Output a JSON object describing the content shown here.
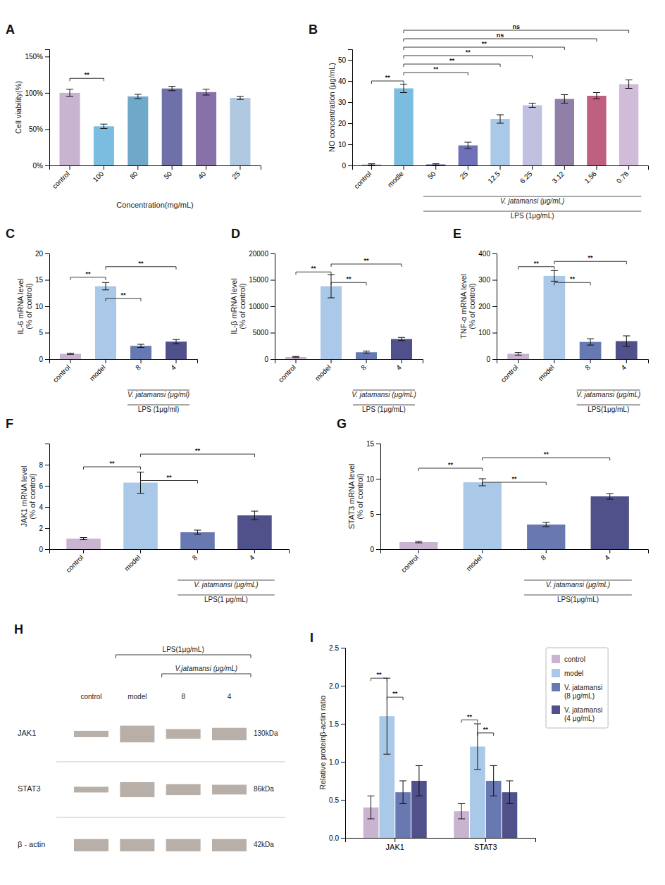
{
  "chart_data": [
    {
      "type": "bar",
      "title": "A",
      "categories": [
        "control",
        "100",
        "80",
        "50",
        "40",
        "25"
      ],
      "values": [
        100,
        54,
        95,
        106,
        101,
        93
      ],
      "errors": [
        5,
        3,
        3,
        3,
        4,
        2
      ],
      "colors": [
        "#c8b4d0",
        "#7abde0",
        "#6fa8c8",
        "#7070a8",
        "#8870a8",
        "#b0c8e0"
      ],
      "xlabel": "Concentration(mg/mL)",
      "ylabel": "Cell viability(%)",
      "ylim": [
        0,
        160
      ],
      "yticks": [
        {
          "value": 0,
          "label": "0%"
        },
        {
          "value": 50,
          "label": "50%"
        },
        {
          "value": 100,
          "label": "100%"
        },
        {
          "value": 150,
          "label": "150%"
        }
      ],
      "annotations": [
        {
          "from": "control",
          "to": "100",
          "y": 120,
          "label": "**"
        }
      ]
    },
    {
      "type": "bar",
      "title": "B",
      "categories": [
        "control",
        "modle",
        "50",
        "25",
        "12.5",
        "6.25",
        "3.12",
        "1.56",
        "0.78"
      ],
      "values": [
        0.5,
        36.5,
        0.5,
        9.5,
        22,
        28.5,
        31.5,
        33,
        38.5
      ],
      "errors": [
        0.3,
        2,
        0.3,
        1.5,
        2,
        1,
        2,
        1.5,
        2
      ],
      "colors": [
        "#c8b4d0",
        "#7abde0",
        "#6060a0",
        "#7070b8",
        "#aac8e8",
        "#c0c0e0",
        "#9080a8",
        "#c06080",
        "#d0bcd8"
      ],
      "ylabel": "NO concentration (μg/mL)",
      "ylim": [
        0,
        55
      ],
      "yticks": [
        0,
        10,
        20,
        30,
        40,
        50
      ],
      "annotations": [
        {
          "from": "control",
          "to": "modle",
          "y": 40,
          "label": "**"
        },
        {
          "from": "modle",
          "to": "25",
          "y": 44,
          "label": "**"
        },
        {
          "from": "modle",
          "to": "12.5",
          "y": 48,
          "label": "**"
        },
        {
          "from": "modle",
          "to": "6.25",
          "y": 52,
          "label": "**"
        },
        {
          "from": "modle",
          "to": "3.12",
          "y": 56,
          "label": "**"
        },
        {
          "from": "modle",
          "to": "1.56",
          "y": 60,
          "label": "ns"
        },
        {
          "from": "modle",
          "to": "0.78",
          "y": 64,
          "label": "ns"
        }
      ],
      "axis_annotations": [
        {
          "text": "V. jatamansi (μg/mL)",
          "from": "50",
          "to": "0.78"
        },
        {
          "text": "LPS (1μg/mL)",
          "from": "50",
          "to": "0.78"
        }
      ]
    },
    {
      "type": "bar",
      "title": "C",
      "categories": [
        "control",
        "model",
        "8",
        "4"
      ],
      "values": [
        1.0,
        13.8,
        2.5,
        3.3
      ],
      "errors": [
        0.1,
        0.7,
        0.3,
        0.4
      ],
      "colors": [
        "#c8b4d0",
        "#aac8e8",
        "#6878b0",
        "#50508a"
      ],
      "ylabel": "IL-6 mRNA level\n(% of control)",
      "ylim": [
        0,
        20
      ],
      "yticks": [
        0,
        5,
        10,
        15,
        20
      ],
      "annotations": [
        {
          "from": "control",
          "to": "model",
          "y": 15.5,
          "label": "**"
        },
        {
          "from": "model",
          "to": "8",
          "y": 11.5,
          "label": "**"
        },
        {
          "from": "model",
          "to": "4",
          "y": 17.5,
          "label": "**"
        }
      ],
      "axis_annotations": [
        {
          "text": "V. jatamansi (μg/ml)",
          "from": "8",
          "to": "4"
        },
        {
          "text": "LPS (1μg/ml)",
          "from": "8",
          "to": "4"
        }
      ]
    },
    {
      "type": "bar",
      "title": "D",
      "categories": [
        "control",
        "model",
        "8",
        "4"
      ],
      "values": [
        400,
        13800,
        1300,
        3800
      ],
      "errors": [
        100,
        2200,
        200,
        300
      ],
      "colors": [
        "#c8b4d0",
        "#aac8e8",
        "#6878b0",
        "#50508a"
      ],
      "ylabel": "IL-β mRNA level\n(% of control)",
      "ylim": [
        0,
        20000
      ],
      "yticks": [
        0,
        5000,
        10000,
        15000,
        20000
      ],
      "annotations": [
        {
          "from": "control",
          "to": "model",
          "y": 16500,
          "label": "**"
        },
        {
          "from": "model",
          "to": "8",
          "y": 14500,
          "label": "**"
        },
        {
          "from": "model",
          "to": "4",
          "y": 18000,
          "label": "**"
        }
      ],
      "axis_annotations": [
        {
          "text": "V. jatamansi (μg/mL)",
          "from": "8",
          "to": "4"
        },
        {
          "text": "LPS (1μg/mL)",
          "from": "8",
          "to": "4"
        }
      ]
    },
    {
      "type": "bar",
      "title": "E",
      "categories": [
        "control",
        "model",
        "8",
        "4"
      ],
      "values": [
        20,
        315,
        65,
        68
      ],
      "errors": [
        5,
        20,
        12,
        20
      ],
      "colors": [
        "#c8b4d0",
        "#aac8e8",
        "#6878b0",
        "#50508a"
      ],
      "ylabel": "TNF-α mRNA level\n(% of control)",
      "ylim": [
        0,
        400
      ],
      "yticks": [
        0,
        100,
        200,
        300,
        400
      ],
      "annotations": [
        {
          "from": "control",
          "to": "model",
          "y": 350,
          "label": "**"
        },
        {
          "from": "model",
          "to": "8",
          "y": 290,
          "label": "**"
        },
        {
          "from": "model",
          "to": "4",
          "y": 370,
          "label": "**"
        }
      ],
      "axis_annotations": [
        {
          "text": "V. jatamansi (μg/mL)",
          "from": "8",
          "to": "4"
        },
        {
          "text": "LPS(1μg/mL)",
          "from": "8",
          "to": "4"
        }
      ]
    },
    {
      "type": "bar",
      "title": "F",
      "categories": [
        "control",
        "model",
        "8",
        "4"
      ],
      "values": [
        1.0,
        6.3,
        1.6,
        3.2
      ],
      "errors": [
        0.1,
        1.0,
        0.2,
        0.4
      ],
      "colors": [
        "#c8b4d0",
        "#aac8e8",
        "#6878b0",
        "#50508a"
      ],
      "ylabel": "JAK1 mRNA level\n(% of control)",
      "ylim": [
        0,
        10
      ],
      "yticks": [
        0,
        2,
        4,
        6,
        8
      ],
      "annotations": [
        {
          "from": "control",
          "to": "model",
          "y": 7.8,
          "label": "**"
        },
        {
          "from": "model",
          "to": "8",
          "y": 6.5,
          "label": "**"
        },
        {
          "from": "model",
          "to": "4",
          "y": 9.0,
          "label": "**"
        }
      ],
      "axis_annotations": [
        {
          "text": "V. jatamansi (μg/mL)",
          "from": "8",
          "to": "4"
        },
        {
          "text": "LPS(1 μg/mL)",
          "from": "8",
          "to": "4"
        }
      ]
    },
    {
      "type": "bar",
      "title": "G",
      "categories": [
        "control",
        "model",
        "8",
        "4"
      ],
      "values": [
        1.0,
        9.5,
        3.5,
        7.5
      ],
      "errors": [
        0.1,
        0.5,
        0.3,
        0.4
      ],
      "colors": [
        "#c8b4d0",
        "#aac8e8",
        "#6878b0",
        "#50508a"
      ],
      "ylabel": "STAT3 mRNA level\n(% of control)",
      "ylim": [
        0,
        15
      ],
      "yticks": [
        0,
        5,
        10,
        15
      ],
      "annotations": [
        {
          "from": "control",
          "to": "model",
          "y": 11.5,
          "label": "**"
        },
        {
          "from": "model",
          "to": "8",
          "y": 9.5,
          "label": "**"
        },
        {
          "from": "model",
          "to": "4",
          "y": 13.0,
          "label": "**"
        }
      ],
      "axis_annotations": [
        {
          "text": "V. jatamansi (μg/mL)",
          "from": "8",
          "to": "4"
        },
        {
          "text": "LPS(1μg/mL)",
          "from": "8",
          "to": "4"
        }
      ]
    },
    {
      "type": "blot",
      "title": "H",
      "lanes": [
        "control",
        "model",
        "8",
        "4"
      ],
      "headers": [
        {
          "label": "LPS(1μg/mL)",
          "from": "model",
          "to": "4"
        },
        {
          "label": "V.jatamansi (μg/mL)",
          "from": "8",
          "to": "4"
        }
      ],
      "bands": [
        {
          "label": "JAK1",
          "kda": "130kDa",
          "widths": [
            0.25,
            0.65,
            0.38,
            0.48
          ]
        },
        {
          "label": "STAT3",
          "kda": "86kDa",
          "widths": [
            0.22,
            0.58,
            0.42,
            0.38
          ]
        },
        {
          "label": "β - actin",
          "kda": "42kDa",
          "widths": [
            0.48,
            0.48,
            0.48,
            0.48
          ]
        }
      ],
      "color": "#b8b0a8"
    },
    {
      "type": "bar",
      "title": "I",
      "categories": [
        "JAK1",
        "STAT3"
      ],
      "series": [
        {
          "name": "control",
          "color": "#c8b4d0",
          "values": [
            0.4,
            0.35
          ],
          "errors": [
            0.15,
            0.1
          ]
        },
        {
          "name": "model",
          "color": "#aac8e8",
          "values": [
            1.6,
            1.2
          ],
          "errors": [
            0.5,
            0.3
          ]
        },
        {
          "name": "V. jatamansi\n(8 μg/mL)",
          "color": "#6878b0",
          "values": [
            0.6,
            0.75
          ],
          "errors": [
            0.15,
            0.2
          ]
        },
        {
          "name": "V. jatamansi\n(4 μg/mL)",
          "color": "#50508a",
          "values": [
            0.75,
            0.6
          ],
          "errors": [
            0.2,
            0.15
          ]
        }
      ],
      "ylabel": "Relative proteinβ-actin ratio",
      "ylim": [
        0,
        2.5
      ],
      "yticks": [
        {
          "value": 0,
          "label": "0.0"
        },
        0.5,
        {
          "value": 1,
          "label": "1.0"
        },
        1.5,
        {
          "value": 2,
          "label": "2.0"
        },
        2.5
      ],
      "legend": "upper right",
      "annotations": [
        {
          "group": "JAK1",
          "from": "control",
          "to": "model",
          "y": 2.1,
          "label": "**"
        },
        {
          "group": "JAK1",
          "from": "model",
          "to": "V. jatamansi\n(8 μg/mL)",
          "y": 1.85,
          "label": "**"
        },
        {
          "group": "STAT3",
          "from": "control",
          "to": "model",
          "y": 1.55,
          "label": "**"
        },
        {
          "group": "STAT3",
          "from": "model",
          "to": "V. jatamansi\n(8 μg/mL)",
          "y": 1.38,
          "label": "**"
        }
      ]
    }
  ]
}
